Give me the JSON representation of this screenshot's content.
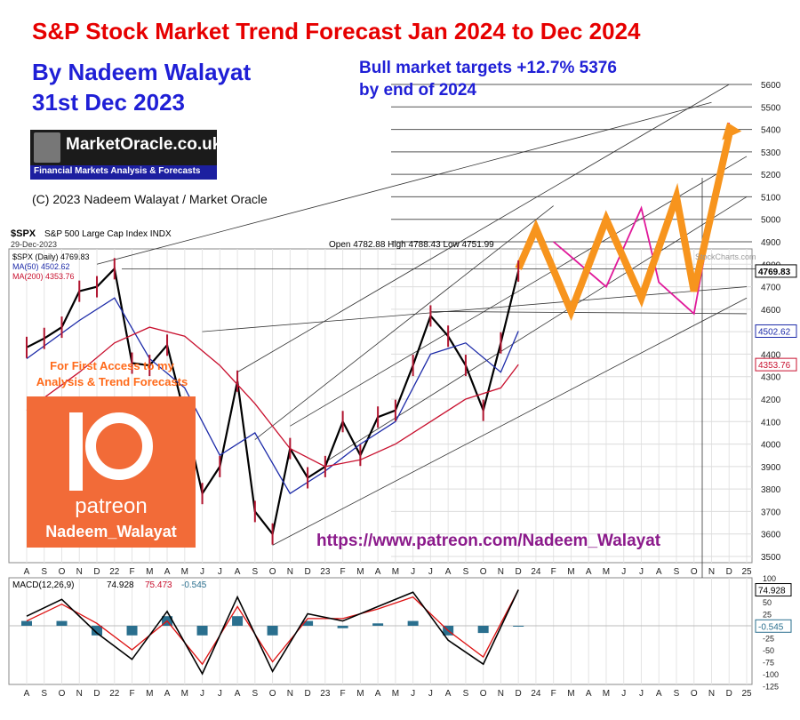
{
  "header": {
    "title": "S&P Stock Market Trend Forecast Jan 2024 to Dec 2024",
    "author": "By Nadeem Walayat",
    "date": "31st Dec 2023",
    "target_line1": "Bull market targets +12.7% 5376",
    "target_line2": "by end of 2024",
    "copyright": "(C) 2023 Nadeem Walayat / Market Oracle"
  },
  "logo": {
    "name": "MarketOracle.co.uk",
    "tagline": "Financial Markets Analysis & Forecasts"
  },
  "patreon": {
    "call1": "For First Access to my",
    "call2": "Analysis & Trend Forecasts",
    "brand": "patreon",
    "handle": "Nadeem_Walayat",
    "url": "https://www.patreon.com/Nadeem_Walayat"
  },
  "colors": {
    "title": "#e60000",
    "author": "#1f1fd6",
    "forecast_orange": "#f7941d",
    "forecast_magenta": "#e0199a",
    "ma50": "#1c2aa8",
    "ma200": "#c8102e",
    "macd_hist": "#2a6f8e",
    "price_up": "#000000",
    "price_down": "#b0142f"
  },
  "chart_data": {
    "type": "line",
    "symbol": "$SPX",
    "description": "S&P 500 Large Cap Index",
    "exchange": "INDX",
    "bar_date": "29-Dec-2023",
    "ohlc": {
      "open": "4782.88",
      "high": "4788.43",
      "low": "4751.99"
    },
    "legend": [
      {
        "text": "$SPX (Daily) 4769.83",
        "color": "#000000"
      },
      {
        "text": "MA(50) 4502.62",
        "color": "#1c2aa8"
      },
      {
        "text": "MA(200) 4353.76",
        "color": "#c8102e"
      }
    ],
    "price_tick_labels": [
      "5600",
      "5500",
      "5400",
      "5300",
      "5200",
      "5100",
      "5000",
      "4900",
      "4800",
      "4700",
      "4600",
      "4500",
      "4400",
      "4300",
      "4200",
      "4100",
      "4000",
      "3900",
      "3800",
      "3700",
      "3600",
      "3500"
    ],
    "price_axis_tags": [
      "4769.83",
      "4502.62",
      "4353.76"
    ],
    "x_tick_labels": [
      "A",
      "S",
      "O",
      "N",
      "D",
      "22",
      "F",
      "M",
      "A",
      "M",
      "J",
      "J",
      "A",
      "S",
      "O",
      "N",
      "D",
      "23",
      "F",
      "M",
      "A",
      "M",
      "J",
      "J",
      "A",
      "S",
      "O",
      "N",
      "D",
      "24",
      "F",
      "M",
      "A",
      "M",
      "J",
      "J",
      "A",
      "S",
      "O",
      "N",
      "D",
      "25"
    ],
    "ylim": [
      3480,
      5660
    ],
    "series": [
      {
        "name": "$SPX (Daily) 4769.83",
        "x": [
          "2021-08",
          "2021-09",
          "2021-10",
          "2021-11",
          "2021-12",
          "2022-01",
          "2022-02",
          "2022-03",
          "2022-04",
          "2022-05",
          "2022-06",
          "2022-07",
          "2022-08",
          "2022-09",
          "2022-10",
          "2022-11",
          "2022-12",
          "2023-01",
          "2023-02",
          "2023-03",
          "2023-04",
          "2023-05",
          "2023-06",
          "2023-07",
          "2023-08",
          "2023-09",
          "2023-10",
          "2023-11",
          "2023-12"
        ],
        "values": [
          4430,
          4470,
          4520,
          4680,
          4700,
          4780,
          4360,
          4350,
          4440,
          4130,
          3780,
          3900,
          4280,
          3700,
          3600,
          3980,
          3850,
          3900,
          4100,
          3950,
          4120,
          4150,
          4350,
          4570,
          4480,
          4350,
          4150,
          4450,
          4769.83
        ]
      },
      {
        "name": "MA(50) 4502.62",
        "x": [
          "2021-08",
          "2021-11",
          "2022-01",
          "2022-03",
          "2022-05",
          "2022-07",
          "2022-09",
          "2022-11",
          "2023-01",
          "2023-03",
          "2023-05",
          "2023-07",
          "2023-09",
          "2023-11",
          "2023-12"
        ],
        "values": [
          4380,
          4550,
          4650,
          4380,
          4250,
          3950,
          4050,
          3780,
          3880,
          4000,
          4100,
          4400,
          4450,
          4320,
          4502.62
        ]
      },
      {
        "name": "MA(200) 4353.76",
        "x": [
          "2021-08",
          "2021-11",
          "2022-01",
          "2022-03",
          "2022-05",
          "2022-07",
          "2022-09",
          "2022-11",
          "2023-01",
          "2023-03",
          "2023-05",
          "2023-07",
          "2023-09",
          "2023-11",
          "2023-12"
        ],
        "values": [
          4150,
          4320,
          4450,
          4520,
          4480,
          4350,
          4180,
          3980,
          3900,
          3930,
          4000,
          4100,
          4200,
          4250,
          4353.76
        ]
      },
      {
        "name": "forecast",
        "x": [
          "2023-12",
          "2024-01",
          "2024-03",
          "2024-05",
          "2024-07",
          "2024-09",
          "2024-10",
          "2024-12"
        ],
        "values": [
          4780,
          4960,
          4590,
          5000,
          4650,
          5100,
          4680,
          5376
        ]
      },
      {
        "name": "alternate",
        "x": [
          "2024-02",
          "2024-05",
          "2024-07",
          "2024-08",
          "2024-10",
          "2024-12"
        ],
        "values": [
          4900,
          4700,
          5050,
          4720,
          4580,
          5430
        ]
      }
    ],
    "macd": {
      "label": "MACD(12,26,9)",
      "macd": "74.928",
      "signal": "75.473",
      "histogram": "-0.545",
      "tick_labels": [
        "100",
        "75",
        "50",
        "25",
        "0",
        "-25",
        "-50",
        "-75",
        "-100",
        "-125"
      ],
      "axis_tags": [
        "74.928",
        "-0.545"
      ],
      "ylim": [
        -130,
        105
      ],
      "x": [
        "2021-08",
        "2021-10",
        "2021-12",
        "2022-02",
        "2022-04",
        "2022-06",
        "2022-08",
        "2022-10",
        "2022-12",
        "2023-02",
        "2023-04",
        "2023-06",
        "2023-08",
        "2023-10",
        "2023-12"
      ],
      "macd_values": [
        20,
        55,
        -15,
        -70,
        30,
        -100,
        60,
        -95,
        25,
        10,
        40,
        70,
        -30,
        -80,
        75
      ],
      "signal_values": [
        10,
        45,
        5,
        -50,
        10,
        -80,
        40,
        -75,
        15,
        15,
        35,
        60,
        -10,
        -65,
        75
      ]
    },
    "watermark": "StockCharts.com"
  }
}
